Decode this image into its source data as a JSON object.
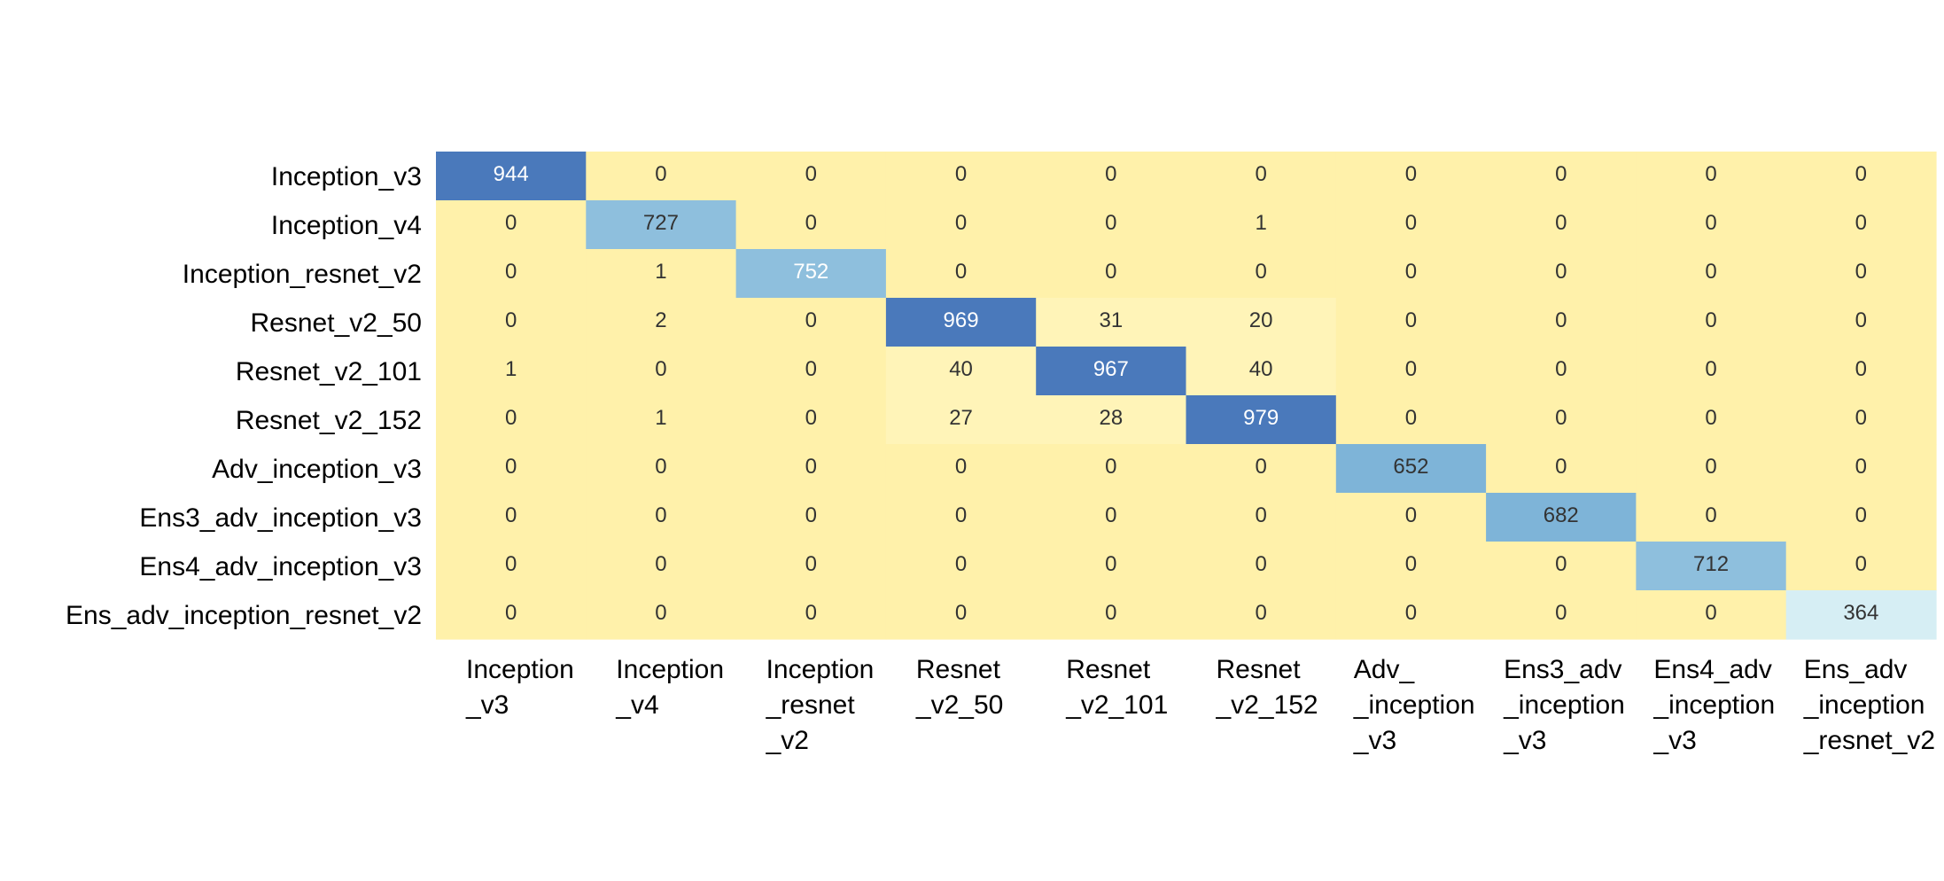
{
  "chart_data": {
    "type": "heatmap",
    "title": "",
    "xlabel": "",
    "ylabel": "",
    "row_labels": [
      "Inception_v3",
      "Inception_v4",
      "Inception_resnet_v2",
      "Resnet_v2_50",
      "Resnet_v2_101",
      "Resnet_v2_152",
      "Adv_inception_v3",
      "Ens3_adv_inception_v3",
      "Ens4_adv_inception_v3",
      "Ens_adv_inception_resnet_v2"
    ],
    "col_labels": [
      [
        "Inception",
        "_v3"
      ],
      [
        "Inception",
        "_v4"
      ],
      [
        "Inception",
        "_resnet",
        "_v2"
      ],
      [
        "Resnet",
        "_v2_50"
      ],
      [
        "Resnet",
        "_v2_101"
      ],
      [
        "Resnet",
        "_v2_152"
      ],
      [
        "Adv_",
        "_inception",
        "_v3"
      ],
      [
        "Ens3_adv",
        "_inception",
        "_v3"
      ],
      [
        "Ens4_adv",
        "_inception",
        "_v3"
      ],
      [
        "Ens_adv",
        "_inception",
        "_resnet_v2"
      ]
    ],
    "values": [
      [
        944,
        0,
        0,
        0,
        0,
        0,
        0,
        0,
        0,
        0
      ],
      [
        0,
        727,
        0,
        0,
        0,
        1,
        0,
        0,
        0,
        0
      ],
      [
        0,
        1,
        752,
        0,
        0,
        0,
        0,
        0,
        0,
        0
      ],
      [
        0,
        2,
        0,
        969,
        31,
        20,
        0,
        0,
        0,
        0
      ],
      [
        1,
        0,
        0,
        40,
        967,
        40,
        0,
        0,
        0,
        0
      ],
      [
        0,
        1,
        0,
        27,
        28,
        979,
        0,
        0,
        0,
        0
      ],
      [
        0,
        0,
        0,
        0,
        0,
        0,
        652,
        0,
        0,
        0
      ],
      [
        0,
        0,
        0,
        0,
        0,
        0,
        0,
        682,
        0,
        0
      ],
      [
        0,
        0,
        0,
        0,
        0,
        0,
        0,
        0,
        712,
        0
      ],
      [
        0,
        0,
        0,
        0,
        0,
        0,
        0,
        0,
        0,
        364
      ]
    ],
    "colors": {
      "zero": "#fff1aa",
      "low": "#fff4b8",
      "very_high": "#4a79bb",
      "high": "#7eb4d8",
      "mid": "#8ebfdd",
      "light": "#d6eef4",
      "text_dark": "#333333",
      "text_light": "#ffffff"
    }
  }
}
